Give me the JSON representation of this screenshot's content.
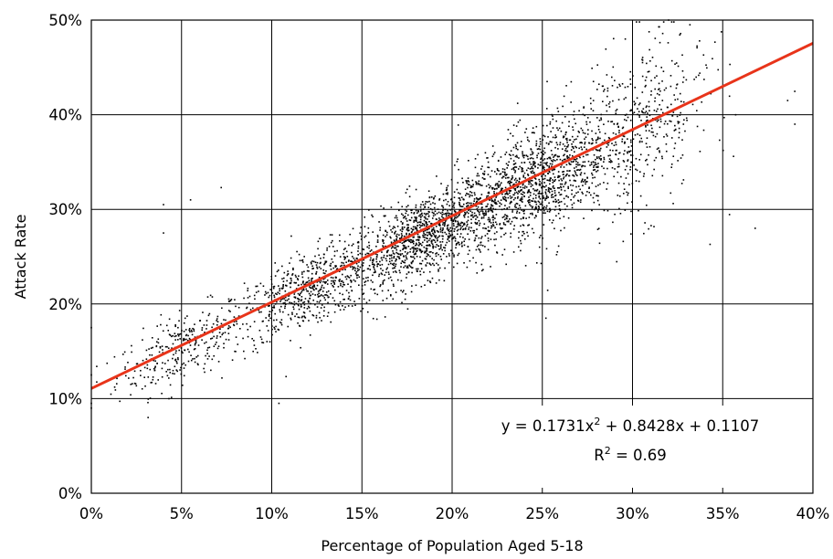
{
  "chart_data": {
    "type": "scatter",
    "title": "",
    "xlabel": "Percentage of Population Aged 5-18",
    "ylabel": "Attack Rate",
    "xlim": [
      0,
      0.4
    ],
    "ylim": [
      0,
      0.5
    ],
    "xticks": [
      0,
      0.05,
      0.1,
      0.15,
      0.2,
      0.25,
      0.3,
      0.35,
      0.4
    ],
    "yticks": [
      0,
      0.1,
      0.2,
      0.3,
      0.4,
      0.5
    ],
    "xtick_labels": [
      "0%",
      "5%",
      "10%",
      "15%",
      "20%",
      "25%",
      "30%",
      "35%",
      "40%"
    ],
    "ytick_labels": [
      "0%",
      "10%",
      "20%",
      "30%",
      "40%",
      "50%"
    ],
    "grid": true,
    "point_color": "#000000",
    "fit_color": "#e8341a",
    "fit": {
      "type": "polynomial",
      "coefficients": [
        0.1731,
        0.8428,
        0.1107
      ],
      "equation_prefix": "y = 0.1731x",
      "equation_exp": "2",
      "equation_suffix": " + 0.8428x + 0.1107",
      "r2_prefix": "R",
      "r2_exp": "2",
      "r2_suffix": " = 0.69"
    },
    "scatter_summary": {
      "approx_point_count": 3500,
      "clusters": [
        {
          "x_center": 0.05,
          "x_spread": 0.03,
          "y_center": 0.155,
          "y_spread": 0.018,
          "n": 300
        },
        {
          "x_center": 0.12,
          "x_spread": 0.035,
          "y_center": 0.215,
          "y_spread": 0.02,
          "n": 600
        },
        {
          "x_center": 0.185,
          "x_spread": 0.035,
          "y_center": 0.27,
          "y_spread": 0.022,
          "n": 1100
        },
        {
          "x_center": 0.245,
          "x_spread": 0.035,
          "y_center": 0.32,
          "y_spread": 0.028,
          "n": 1100
        },
        {
          "x_center": 0.3,
          "x_spread": 0.035,
          "y_center": 0.37,
          "y_spread": 0.045,
          "n": 500
        }
      ],
      "outliers": [
        {
          "x": 0.0,
          "y": 0.09
        },
        {
          "x": 0.0,
          "y": 0.095
        },
        {
          "x": 0.0,
          "y": 0.125
        },
        {
          "x": 0.0,
          "y": 0.175
        },
        {
          "x": 0.04,
          "y": 0.305
        },
        {
          "x": 0.04,
          "y": 0.275
        },
        {
          "x": 0.055,
          "y": 0.31
        },
        {
          "x": 0.072,
          "y": 0.323
        },
        {
          "x": 0.104,
          "y": 0.095
        },
        {
          "x": 0.252,
          "y": 0.185
        },
        {
          "x": 0.32,
          "y": 0.5
        },
        {
          "x": 0.39,
          "y": 0.39
        },
        {
          "x": 0.386,
          "y": 0.415
        },
        {
          "x": 0.343,
          "y": 0.263
        },
        {
          "x": 0.356,
          "y": 0.356
        },
        {
          "x": 0.368,
          "y": 0.28
        },
        {
          "x": 0.296,
          "y": 0.48
        }
      ]
    }
  }
}
